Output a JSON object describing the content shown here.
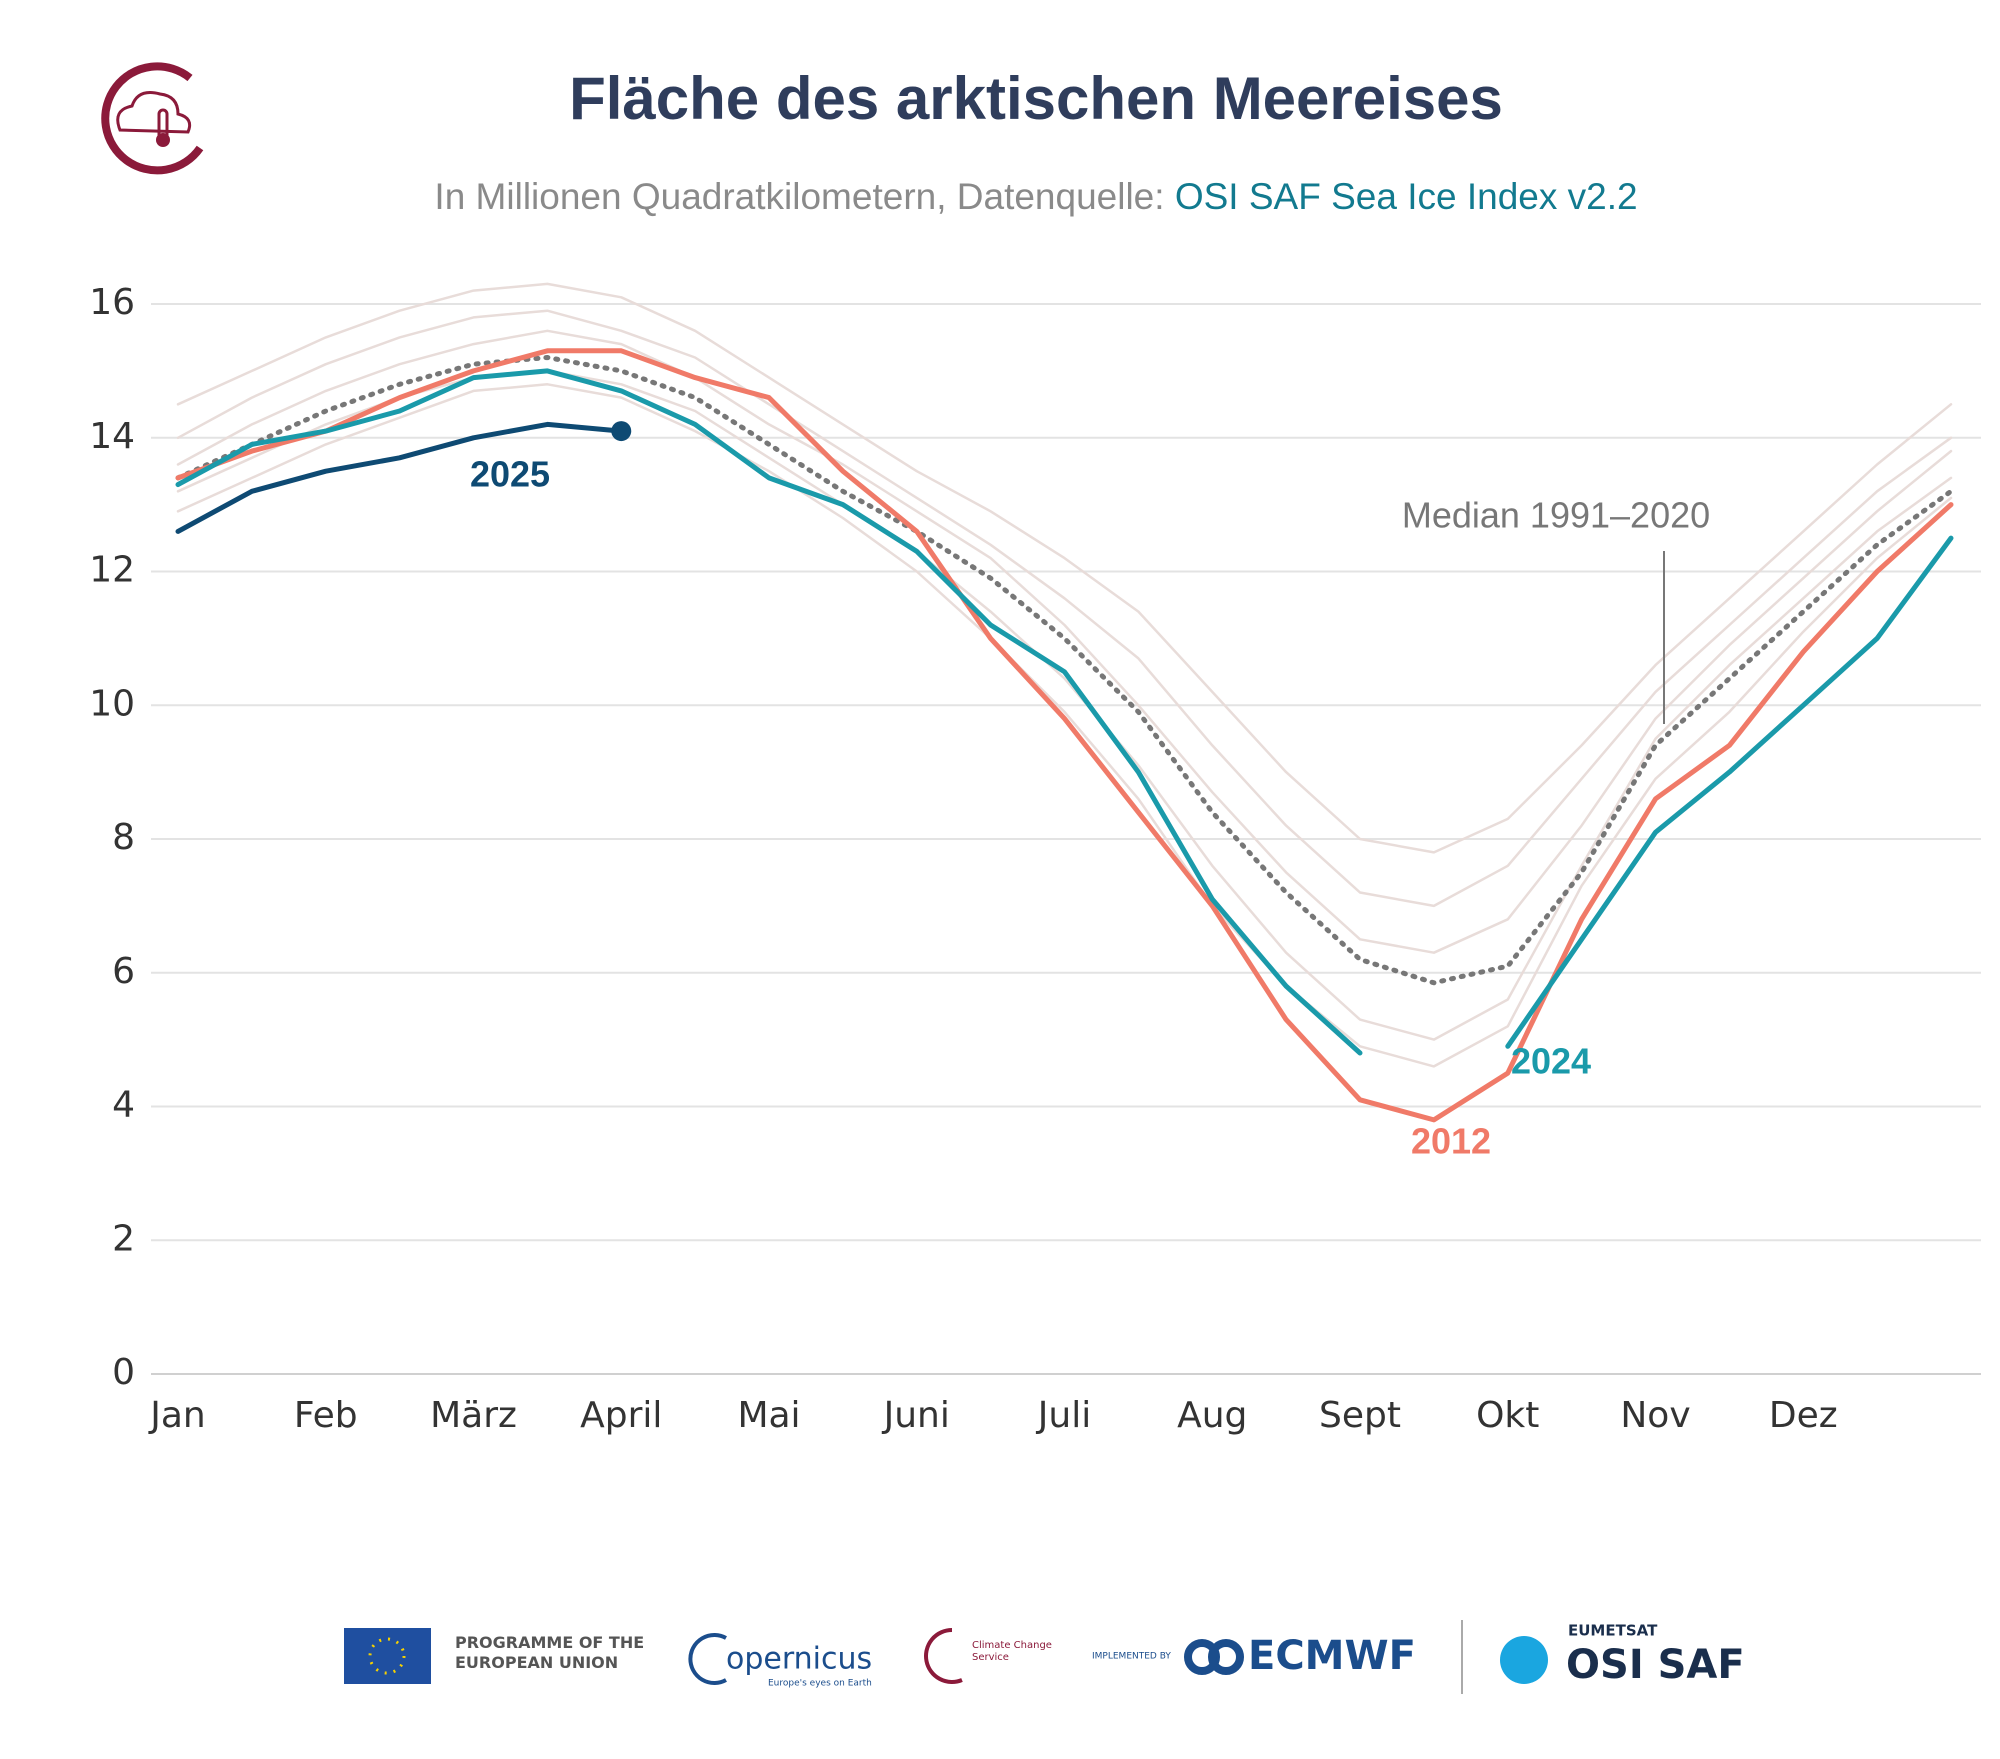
{
  "chart_data": {
    "type": "line",
    "title": "Fläche des arktischen Meereises",
    "subtitle": {
      "text": "In Millionen Quadratkilometern, Datenquelle: ",
      "source": "OSI SAF Sea Ice Index v2.2"
    },
    "categories": [
      "Jan",
      null,
      "Feb",
      null,
      "März",
      null,
      "April",
      null,
      "Mai",
      null,
      "Juni",
      null,
      "Juli",
      null,
      "Aug",
      null,
      "Sept",
      null,
      "Okt",
      null,
      "Nov",
      null,
      "Dez",
      null,
      null
    ],
    "ylim": [
      0,
      16
    ],
    "yticks": [
      0,
      2,
      4,
      6,
      8,
      10,
      12,
      14,
      16
    ],
    "grid": true,
    "series": [
      {
        "color": "#e8dcd9",
        "values": [
          14.5,
          15.0,
          15.5,
          15.9,
          16.2,
          16.3,
          16.1,
          15.6,
          14.9,
          14.2,
          13.5,
          12.9,
          12.2,
          11.4,
          10.2,
          9.0,
          8.0,
          7.8,
          8.3,
          9.4,
          10.6,
          11.6,
          12.6,
          13.6,
          14.5
        ]
      },
      {
        "color": "#e8dcd9",
        "values": [
          14.0,
          14.6,
          15.1,
          15.5,
          15.8,
          15.9,
          15.6,
          15.2,
          14.5,
          13.8,
          13.1,
          12.4,
          11.6,
          10.7,
          9.4,
          8.2,
          7.2,
          7.0,
          7.6,
          8.9,
          10.2,
          11.2,
          12.2,
          13.2,
          14.0
        ]
      },
      {
        "color": "#e8dcd9",
        "values": [
          13.2,
          13.7,
          14.2,
          14.6,
          14.9,
          15.0,
          14.8,
          14.4,
          13.7,
          13.0,
          12.3,
          11.4,
          10.4,
          9.1,
          7.6,
          6.3,
          5.3,
          5.0,
          5.6,
          7.6,
          9.5,
          10.6,
          11.6,
          12.6,
          13.4
        ]
      },
      {
        "color": "#e8dcd9",
        "values": [
          13.6,
          14.2,
          14.7,
          15.1,
          15.4,
          15.6,
          15.4,
          14.9,
          14.2,
          13.6,
          12.9,
          12.2,
          11.2,
          10.0,
          8.7,
          7.5,
          6.5,
          6.3,
          6.8,
          8.2,
          9.8,
          10.9,
          11.9,
          12.9,
          13.8
        ]
      },
      {
        "color": "#e8dcd9",
        "values": [
          12.9,
          13.4,
          13.9,
          14.3,
          14.7,
          14.8,
          14.6,
          14.1,
          13.5,
          12.8,
          12.0,
          11.0,
          9.9,
          8.6,
          7.0,
          5.8,
          4.9,
          4.6,
          5.2,
          7.3,
          8.9,
          9.9,
          11.1,
          12.2,
          13.1
        ]
      },
      {
        "name": "Median 1991–2020",
        "color": "#777777",
        "dash": true,
        "values": [
          13.4,
          13.9,
          14.4,
          14.8,
          15.1,
          15.2,
          15.0,
          14.6,
          13.9,
          13.2,
          12.6,
          11.9,
          11.0,
          9.9,
          8.4,
          7.2,
          6.2,
          5.85,
          6.1,
          7.5,
          9.4,
          10.4,
          11.4,
          12.4,
          13.2
        ]
      },
      {
        "name": "2012",
        "color": "#f07a68",
        "values": [
          13.4,
          13.8,
          14.1,
          14.6,
          15.0,
          15.3,
          15.3,
          14.9,
          14.6,
          13.5,
          12.6,
          11.0,
          9.8,
          8.4,
          7.0,
          5.3,
          4.1,
          3.8,
          4.5,
          6.8,
          8.6,
          9.4,
          10.8,
          12.0,
          13.0
        ]
      },
      {
        "name": "2024",
        "color": "#1a9aaa",
        "values": [
          13.3,
          13.9,
          14.1,
          14.4,
          14.9,
          15.0,
          14.7,
          14.2,
          13.4,
          13.0,
          12.3,
          11.2,
          10.5,
          9.0,
          7.1,
          5.8,
          4.8,
          null,
          4.9,
          6.5,
          8.1,
          9.0,
          10.0,
          11.0,
          12.5
        ]
      },
      {
        "name": "2025",
        "color": "#0e4a73",
        "end_marker": true,
        "values": [
          12.6,
          13.2,
          13.5,
          13.7,
          14.0,
          14.2,
          14.1,
          null,
          null,
          null,
          null,
          null,
          null,
          null,
          null,
          null,
          null,
          null,
          null,
          null,
          null,
          null,
          null,
          null,
          null
        ]
      }
    ]
  },
  "footer": {
    "eu": "PROGRAMME OF THE EUROPEAN UNION",
    "copernicus": "opernicus",
    "copernicus_tagline": "Europe's eyes on Earth",
    "c3s": "Climate Change Service",
    "implemented_by": "IMPLEMENTED BY",
    "ecmwf": "ECMWF",
    "eumetsat": "EUMETSAT",
    "osisaf": "OSI SAF"
  }
}
